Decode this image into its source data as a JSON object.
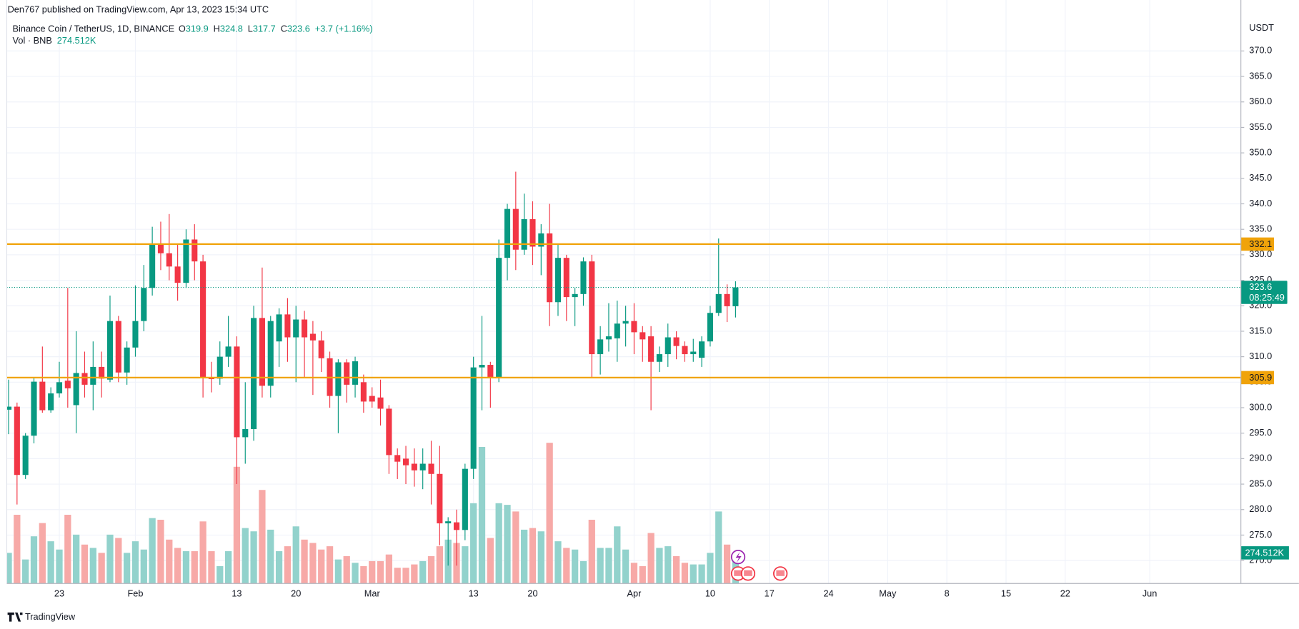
{
  "header": {
    "published": "Den767 published on TradingView.com, Apr 13, 2023 15:34 UTC",
    "logo": "TradingView"
  },
  "chart_data": {
    "type": "candlestick",
    "title": "Binance Coin / TetherUS, 1D, BINANCE",
    "ohlc_labels": [
      "O",
      "H",
      "L",
      "C"
    ],
    "change_label": "+3.7 (+1.16%)",
    "volume_title": "Vol · BNB",
    "volume_label": "274.512K",
    "y_axis_label": "USDT",
    "countdown": "08:25:49",
    "up_color": "#089981",
    "down_color": "#f23645",
    "volume_up_color": "#92d2cc",
    "volume_down_color": "#f7a9a7",
    "grid": true,
    "x": [
      "2023-01-17",
      "2023-01-18",
      "2023-01-19",
      "2023-01-20",
      "2023-01-21",
      "2023-01-22",
      "2023-01-23",
      "2023-01-24",
      "2023-01-25",
      "2023-01-26",
      "2023-01-27",
      "2023-01-28",
      "2023-01-29",
      "2023-01-30",
      "2023-01-31",
      "2023-02-01",
      "2023-02-02",
      "2023-02-03",
      "2023-02-04",
      "2023-02-05",
      "2023-02-06",
      "2023-02-07",
      "2023-02-08",
      "2023-02-09",
      "2023-02-10",
      "2023-02-11",
      "2023-02-12",
      "2023-02-13",
      "2023-02-14",
      "2023-02-15",
      "2023-02-16",
      "2023-02-17",
      "2023-02-18",
      "2023-02-19",
      "2023-02-20",
      "2023-02-21",
      "2023-02-22",
      "2023-02-23",
      "2023-02-24",
      "2023-02-25",
      "2023-02-26",
      "2023-02-27",
      "2023-02-28",
      "2023-03-01",
      "2023-03-02",
      "2023-03-03",
      "2023-03-04",
      "2023-03-05",
      "2023-03-06",
      "2023-03-07",
      "2023-03-08",
      "2023-03-09",
      "2023-03-10",
      "2023-03-11",
      "2023-03-12",
      "2023-03-13",
      "2023-03-14",
      "2023-03-15",
      "2023-03-16",
      "2023-03-17",
      "2023-03-18",
      "2023-03-19",
      "2023-03-20",
      "2023-03-21",
      "2023-03-22",
      "2023-03-23",
      "2023-03-24",
      "2023-03-25",
      "2023-03-26",
      "2023-03-27",
      "2023-03-28",
      "2023-03-29",
      "2023-03-30",
      "2023-03-31",
      "2023-04-01",
      "2023-04-02",
      "2023-04-03",
      "2023-04-04",
      "2023-04-05",
      "2023-04-06",
      "2023-04-07",
      "2023-04-08",
      "2023-04-09",
      "2023-04-10",
      "2023-04-11",
      "2023-04-12",
      "2023-04-13"
    ],
    "open": [
      299.6,
      300.2,
      286.8,
      294.5,
      305.1,
      299.5,
      302.8,
      305.3,
      300.5,
      306.8,
      304.5,
      308,
      305.5,
      317,
      306.9,
      311.8,
      317,
      323.5,
      332,
      330.3,
      327.7,
      324.5,
      333,
      328.7,
      306,
      305.7,
      310,
      312,
      294.2,
      295.8,
      317.6,
      304.3,
      313,
      318.3,
      313.8,
      317.3,
      314.5,
      313.2,
      309.7,
      302.3,
      308.9,
      304.5,
      305,
      302.3,
      302,
      299.8,
      290.7,
      290,
      289,
      287.7,
      289,
      287,
      277.3,
      277.5,
      276,
      288,
      307.9,
      308.4,
      306,
      329.4,
      339,
      331,
      337,
      331.6,
      334.2,
      320.7,
      329.4,
      321.7,
      322.3,
      328.7,
      310.5,
      313.4,
      313.6,
      316.5,
      317,
      314.8,
      314,
      309,
      310.5,
      313.8,
      312.1,
      310.5,
      309.8,
      313,
      318.6,
      322.3,
      319.9
    ],
    "high": [
      305.5,
      301,
      295,
      306,
      312,
      304,
      309,
      323.5,
      315,
      311,
      313,
      311,
      322,
      318,
      313,
      324,
      328,
      335.5,
      336.5,
      338,
      332,
      335,
      336,
      330,
      309,
      313,
      318,
      314,
      305,
      320,
      327.5,
      318,
      319.5,
      321.5,
      320,
      319,
      317,
      315,
      311,
      309.5,
      309.5,
      310,
      306.5,
      304,
      305.5,
      300.5,
      292,
      292.5,
      292,
      292,
      293.5,
      292.5,
      278.5,
      280,
      289,
      310,
      318,
      309,
      333,
      340,
      346.3,
      342,
      340.5,
      336,
      340,
      332,
      330,
      323.5,
      329.5,
      330,
      316,
      320.5,
      321,
      320,
      320.5,
      316,
      316,
      312,
      316.5,
      315,
      313,
      313.5,
      314,
      320,
      333.2,
      324.2,
      324.8
    ],
    "low": [
      294.8,
      281,
      286,
      293,
      299,
      299,
      302,
      300,
      295,
      302,
      299.5,
      302,
      305,
      305,
      304.5,
      310,
      315,
      322,
      327,
      325,
      321,
      323.5,
      325,
      302,
      303,
      304.5,
      308,
      285,
      289,
      293.5,
      302,
      302,
      308,
      309,
      305,
      306,
      302.5,
      307,
      300,
      295,
      301,
      302,
      299,
      300,
      296.5,
      287,
      286,
      285,
      284.5,
      284,
      281,
      273,
      269,
      269,
      274,
      286,
      299.5,
      300,
      305,
      325,
      327,
      330,
      328,
      326,
      316,
      318,
      317,
      316,
      320,
      305.8,
      306.5,
      311,
      309,
      312,
      310.5,
      309,
      299.5,
      307,
      308,
      309.5,
      309,
      309,
      308,
      312,
      318,
      316.8,
      317.7
    ],
    "close": [
      300.2,
      286.8,
      294.5,
      305.1,
      299.5,
      302.8,
      305,
      303.8,
      306.8,
      304.5,
      308,
      305.7,
      317,
      306.9,
      311.8,
      317,
      323.5,
      332,
      330.3,
      327.7,
      324.5,
      333,
      328.7,
      305.9,
      305.6,
      310,
      312,
      294.2,
      295.8,
      317.6,
      304.3,
      317,
      318.3,
      313.8,
      317.3,
      313.8,
      313.2,
      309.7,
      302.3,
      308.9,
      304.5,
      309.1,
      301.2,
      301.2,
      299.8,
      290.7,
      289.4,
      288.7,
      287.7,
      289,
      287,
      277.3,
      277.7,
      276,
      288,
      307.9,
      308.4,
      306,
      329.4,
      339,
      331,
      337,
      331.6,
      334.2,
      320.7,
      329.4,
      321.7,
      322.3,
      328.7,
      310.5,
      313.4,
      314,
      316.5,
      317,
      314.8,
      313.4,
      309,
      310.5,
      313.8,
      312.1,
      310.5,
      311,
      313,
      318.6,
      322.3,
      319.9,
      323.6
    ],
    "volume": [
      274.5,
      615.9,
      215.2,
      422.9,
      541.7,
      378.4,
      304.2,
      615.9,
      437.8,
      348.7,
      319.1,
      274.5,
      437.8,
      408.1,
      274.5,
      378.4,
      304.2,
      586.2,
      571.3,
      393.3,
      319.1,
      289.4,
      289.4,
      556.5,
      289.4,
      155.8,
      289.4,
      1046.2,
      497.1,
      467.5,
      838.5,
      482.3,
      289.4,
      333.9,
      512,
      393.3,
      363.6,
      304.2,
      333.9,
      215.2,
      244.9,
      185.5,
      155.8,
      200.3,
      200.3,
      259.7,
      141,
      141,
      170.7,
      200.3,
      244.9,
      333.9,
      393.3,
      363.6,
      333.9,
      719.7,
      1224.3,
      408.1,
      719.7,
      704.9,
      645.5,
      482.3,
      497.1,
      467.5,
      1261.4,
      378.4,
      319.1,
      304.2,
      200.3,
      571.3,
      319.1,
      319.1,
      512,
      304.2,
      185.5,
      155.8,
      452.6,
      319.1,
      333.9,
      244.9,
      185.5,
      170.7,
      170.7,
      274.5,
      645.5,
      348.7,
      274.512
    ],
    "xlim": [
      "2023-01-16",
      "2023-06-11"
    ],
    "xticks": [
      {
        "value": "2023-01-23",
        "label": "23"
      },
      {
        "value": "2023-02-01",
        "label": "Feb"
      },
      {
        "value": "2023-02-13",
        "label": "13"
      },
      {
        "value": "2023-02-20",
        "label": "20"
      },
      {
        "value": "2023-03-01",
        "label": "Mar"
      },
      {
        "value": "2023-03-13",
        "label": "13"
      },
      {
        "value": "2023-03-20",
        "label": "20"
      },
      {
        "value": "2023-04-01",
        "label": "Apr"
      },
      {
        "value": "2023-04-10",
        "label": "10"
      },
      {
        "value": "2023-04-17",
        "label": "17"
      },
      {
        "value": "2023-04-24",
        "label": "24"
      },
      {
        "value": "2023-05-01",
        "label": "May"
      },
      {
        "value": "2023-05-08",
        "label": "8"
      },
      {
        "value": "2023-05-15",
        "label": "15"
      },
      {
        "value": "2023-05-22",
        "label": "22"
      },
      {
        "value": "2023-06-01",
        "label": "Jun"
      }
    ],
    "ylim": [
      265.5,
      380
    ],
    "yticks": [
      {
        "value": 270,
        "label": "270.0"
      },
      {
        "value": 275,
        "label": "275.0"
      },
      {
        "value": 280,
        "label": "280.0"
      },
      {
        "value": 285,
        "label": "285.0"
      },
      {
        "value": 290,
        "label": "290.0"
      },
      {
        "value": 295,
        "label": "295.0"
      },
      {
        "value": 300,
        "label": "300.0"
      },
      {
        "value": 305,
        "label": "305.0"
      },
      {
        "value": 310,
        "label": "310.0"
      },
      {
        "value": 315,
        "label": "315.0"
      },
      {
        "value": 320,
        "label": "320.0"
      },
      {
        "value": 325,
        "label": "325.0"
      },
      {
        "value": 330,
        "label": "330.0"
      },
      {
        "value": 335,
        "label": "335.0"
      },
      {
        "value": 340,
        "label": "340.0"
      },
      {
        "value": 345,
        "label": "345.0"
      },
      {
        "value": 350,
        "label": "350.0"
      },
      {
        "value": 355,
        "label": "355.0"
      },
      {
        "value": 360,
        "label": "360.0"
      },
      {
        "value": 365,
        "label": "365.0"
      },
      {
        "value": 370,
        "label": "370.0"
      }
    ],
    "levels": [
      {
        "value": 332.1,
        "color": "#f0a30a"
      },
      {
        "value": 305.9,
        "color": "#f0a30a"
      }
    ]
  }
}
